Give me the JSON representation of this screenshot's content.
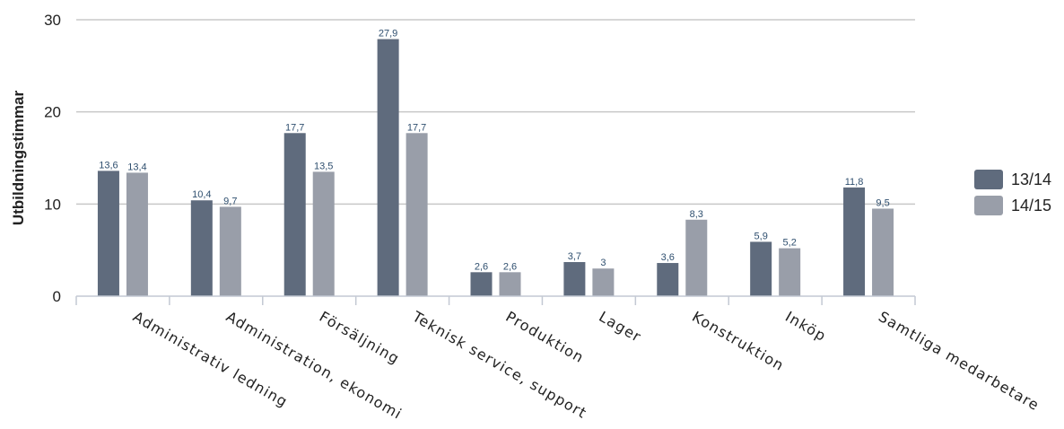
{
  "chart_data": {
    "type": "bar",
    "title": "",
    "xlabel": "",
    "ylabel": "Utbildningstimmar",
    "ylim": [
      0,
      30
    ],
    "yticks": [
      0,
      10,
      20,
      30
    ],
    "grid": true,
    "legend_position": "right",
    "categories": [
      "Administrativ ledning",
      "Administration, ekonomi",
      "Försäljning",
      "Teknisk service, support",
      "Produktion",
      "Lager",
      "Konstruktion",
      "Inköp",
      "Samtliga medarbetare"
    ],
    "series": [
      {
        "name": "13/14",
        "color": "#5f6b7d",
        "values": [
          13.6,
          10.4,
          17.7,
          27.9,
          2.6,
          3.7,
          3.6,
          5.9,
          11.8
        ],
        "labels": [
          "13,6",
          "10,4",
          "17,7",
          "27,9",
          "2,6",
          "3,7",
          "3,6",
          "5,9",
          "11,8"
        ]
      },
      {
        "name": "14/15",
        "color": "#999ea9",
        "values": [
          13.4,
          9.7,
          13.5,
          17.7,
          2.6,
          3.0,
          8.3,
          5.2,
          9.5
        ],
        "labels": [
          "13,4",
          "9,7",
          "13,5",
          "17,7",
          "2,6",
          "3",
          "8,3",
          "5,2",
          "9,5"
        ]
      }
    ]
  }
}
